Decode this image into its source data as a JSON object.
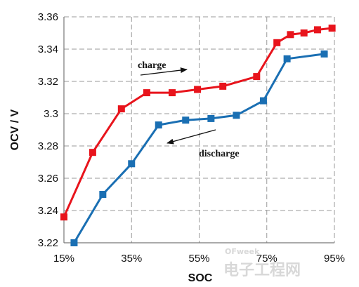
{
  "chart_data": {
    "type": "line",
    "xlabel": "SOC",
    "ylabel": "OCV / V",
    "x_ticks": [
      "15%",
      "35%",
      "55%",
      "75%",
      "95%"
    ],
    "x_tick_values": [
      15,
      35,
      55,
      75,
      95
    ],
    "y_ticks": [
      "3.22",
      "3.24",
      "3.26",
      "3.28",
      "3.3",
      "3.32",
      "3.34",
      "3.36"
    ],
    "y_tick_values": [
      3.22,
      3.24,
      3.26,
      3.28,
      3.3,
      3.32,
      3.34,
      3.36
    ],
    "xlim": [
      15,
      95
    ],
    "ylim": [
      3.22,
      3.36
    ],
    "grid": true,
    "series": [
      {
        "color": "#e8141c",
        "x": [
          15,
          23.5,
          32,
          39.5,
          47,
          54.5,
          62,
          72,
          78,
          82,
          86,
          90,
          94.3
        ],
        "y": [
          3.236,
          3.276,
          3.303,
          3.313,
          3.313,
          3.315,
          3.317,
          3.323,
          3.344,
          3.349,
          3.35,
          3.352,
          3.353
        ]
      },
      {
        "color": "#1a6fb3",
        "x": [
          18,
          26.5,
          35,
          43,
          51,
          58.5,
          66,
          74,
          81,
          92
        ],
        "y": [
          3.22,
          3.25,
          3.269,
          3.293,
          3.296,
          3.297,
          3.299,
          3.308,
          3.334,
          3.337
        ]
      }
    ],
    "annotations": [
      {
        "text": "charge",
        "arrow": "right"
      },
      {
        "text": "discharge",
        "arrow": "left"
      }
    ]
  },
  "watermark": {
    "text": "电子工程网",
    "badge": "OFweek"
  }
}
